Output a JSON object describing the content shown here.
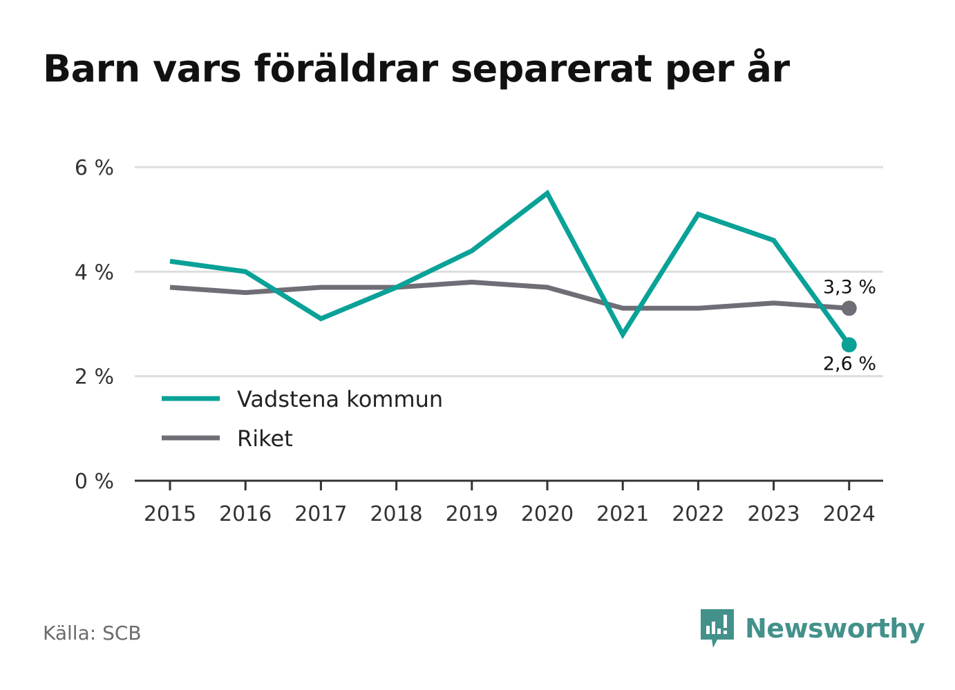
{
  "header": {
    "title": "Barn vars föräldrar separerat per år"
  },
  "footer": {
    "source": "Källa: SCB",
    "brand": "Newsworthy"
  },
  "colors": {
    "vadstena": "#0aa197",
    "riket": "#6f6e76",
    "brand": "#43918b"
  },
  "chart_data": {
    "type": "line",
    "title": "Barn vars föräldrar separerat per år",
    "x": [
      "2015",
      "2016",
      "2017",
      "2018",
      "2019",
      "2020",
      "2021",
      "2022",
      "2023",
      "2024"
    ],
    "ylim": [
      0,
      6
    ],
    "yticks": [
      0,
      2,
      4,
      6
    ],
    "ytick_labels": [
      "0 %",
      "2 %",
      "4 %",
      "6 %"
    ],
    "grid": true,
    "legend": "bottom-left",
    "series": [
      {
        "name": "Vadstena kommun",
        "color": "#0aa197",
        "values": [
          4.2,
          4.0,
          3.1,
          3.7,
          4.4,
          5.5,
          2.8,
          5.1,
          4.6,
          2.6
        ],
        "end_label": "2,6 %"
      },
      {
        "name": "Riket",
        "color": "#6f6e76",
        "values": [
          3.7,
          3.6,
          3.7,
          3.7,
          3.8,
          3.7,
          3.3,
          3.3,
          3.4,
          3.3
        ],
        "end_label": "3,3 %"
      }
    ]
  }
}
